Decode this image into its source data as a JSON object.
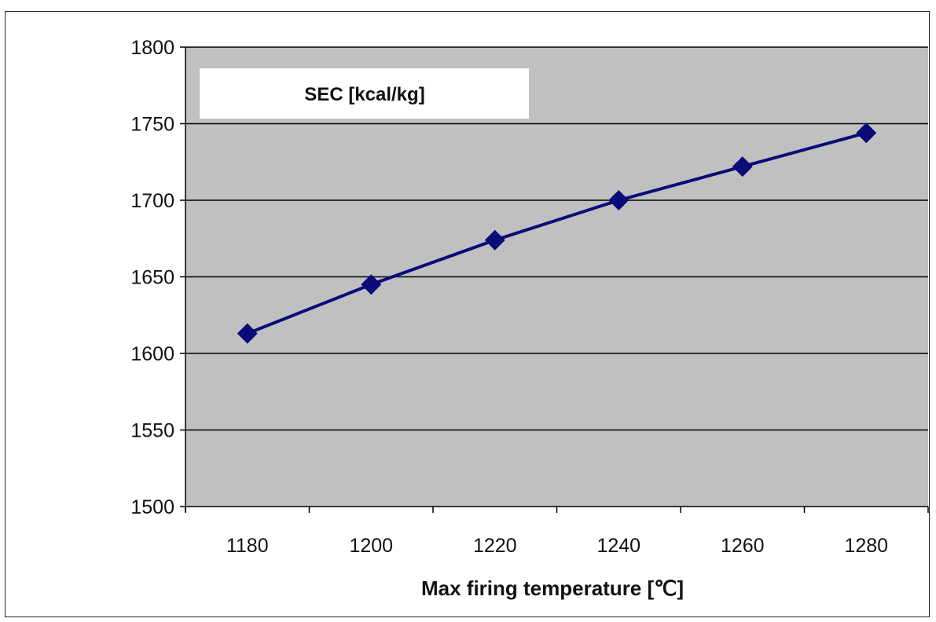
{
  "chart_data": {
    "type": "line",
    "x": [
      1180,
      1200,
      1220,
      1240,
      1260,
      1280
    ],
    "series": [
      {
        "name": "SEC [kcal/kg]",
        "values": [
          1613,
          1645,
          1674,
          1700,
          1722,
          1744
        ]
      }
    ],
    "xlabel": "Max firing temperature [℃]",
    "ylabel": "",
    "xticks": [
      "1180",
      "1200",
      "1220",
      "1240",
      "1260",
      "1280"
    ],
    "yticks": [
      "1500",
      "1550",
      "1600",
      "1650",
      "1700",
      "1750",
      "1800"
    ],
    "ylim": [
      1500,
      1800
    ],
    "grid": "horizontal",
    "legend_position": "top-left",
    "colors": {
      "series": "#0a0a78",
      "plot_background": "#c0c0c0",
      "gridline": "#000000"
    }
  }
}
